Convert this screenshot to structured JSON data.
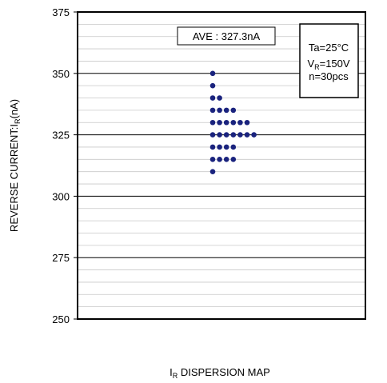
{
  "chart_data": {
    "type": "scatter",
    "title": "",
    "xlabel": {
      "prefix": "I",
      "sub": "R",
      "rest": " DISPERSION MAP"
    },
    "ylabel": {
      "prefix": "REVERSE CURRENT:I",
      "sub": "R",
      "rest": "(nA)"
    },
    "ylim": [
      250,
      375
    ],
    "yticks": [
      "250",
      "275",
      "300",
      "325",
      "350",
      "375"
    ],
    "grid": true,
    "average_label": "AVE : 327.3nA",
    "conditions": {
      "line1": "Ta=25°C",
      "line2_prefix": "V",
      "line2_sub": "R",
      "line2_rest": "=150V",
      "line3": "n=30pcs"
    },
    "point_color": "#1a237e",
    "points_by_value": [
      {
        "value": 350,
        "count": 1
      },
      {
        "value": 345,
        "count": 1
      },
      {
        "value": 340,
        "count": 2
      },
      {
        "value": 335,
        "count": 4
      },
      {
        "value": 330,
        "count": 6
      },
      {
        "value": 325,
        "count": 7
      },
      {
        "value": 320,
        "count": 4
      },
      {
        "value": 315,
        "count": 4
      },
      {
        "value": 310,
        "count": 1
      }
    ]
  }
}
